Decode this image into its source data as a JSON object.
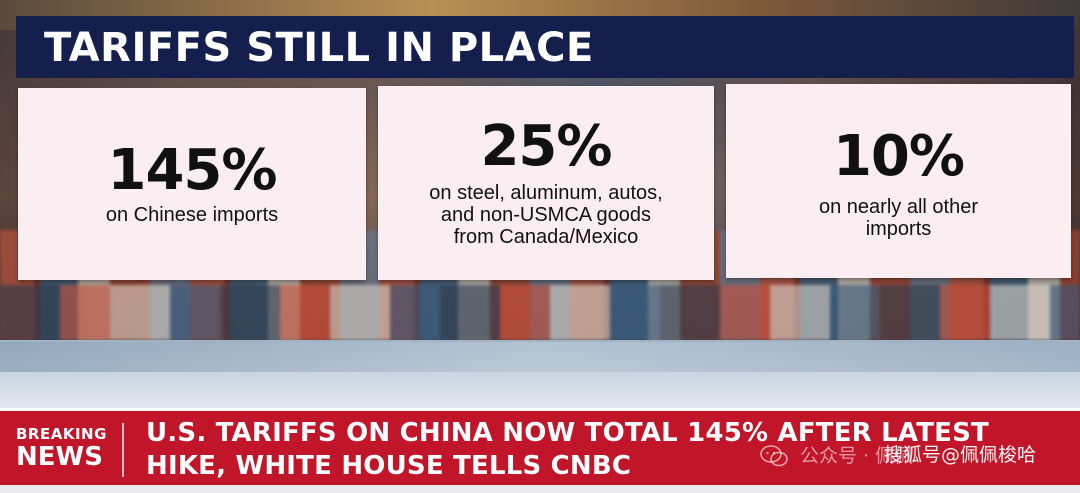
{
  "title": "TARIFFS STILL IN PLACE",
  "cards": [
    {
      "value": "145%",
      "desc_lines": [
        "on Chinese imports"
      ]
    },
    {
      "value": "25%",
      "desc_lines": [
        "on steel, aluminum, autos,",
        "and non-USMCA goods",
        "from Canada/Mexico"
      ]
    },
    {
      "value": "10%",
      "desc_lines": [
        "on nearly all other",
        "imports"
      ]
    }
  ],
  "ticker": {
    "tag_top": "BREAKING",
    "tag_bottom": "NEWS",
    "headline_line1": "U.S. TARIFFS ON CHINA NOW TOTAL 145% AFTER LATEST",
    "headline_line2": "HIKE, WHITE HOUSE TELLS CNBC"
  },
  "watermark": {
    "icon": "wechat-icon",
    "account": "公众号 · 佩佩",
    "source": "搜狐号@佩佩梭哈"
  },
  "colors": {
    "header_bg": "#141f4e",
    "card_bg": "#fbeef2",
    "ticker_red": "#c1152a"
  }
}
